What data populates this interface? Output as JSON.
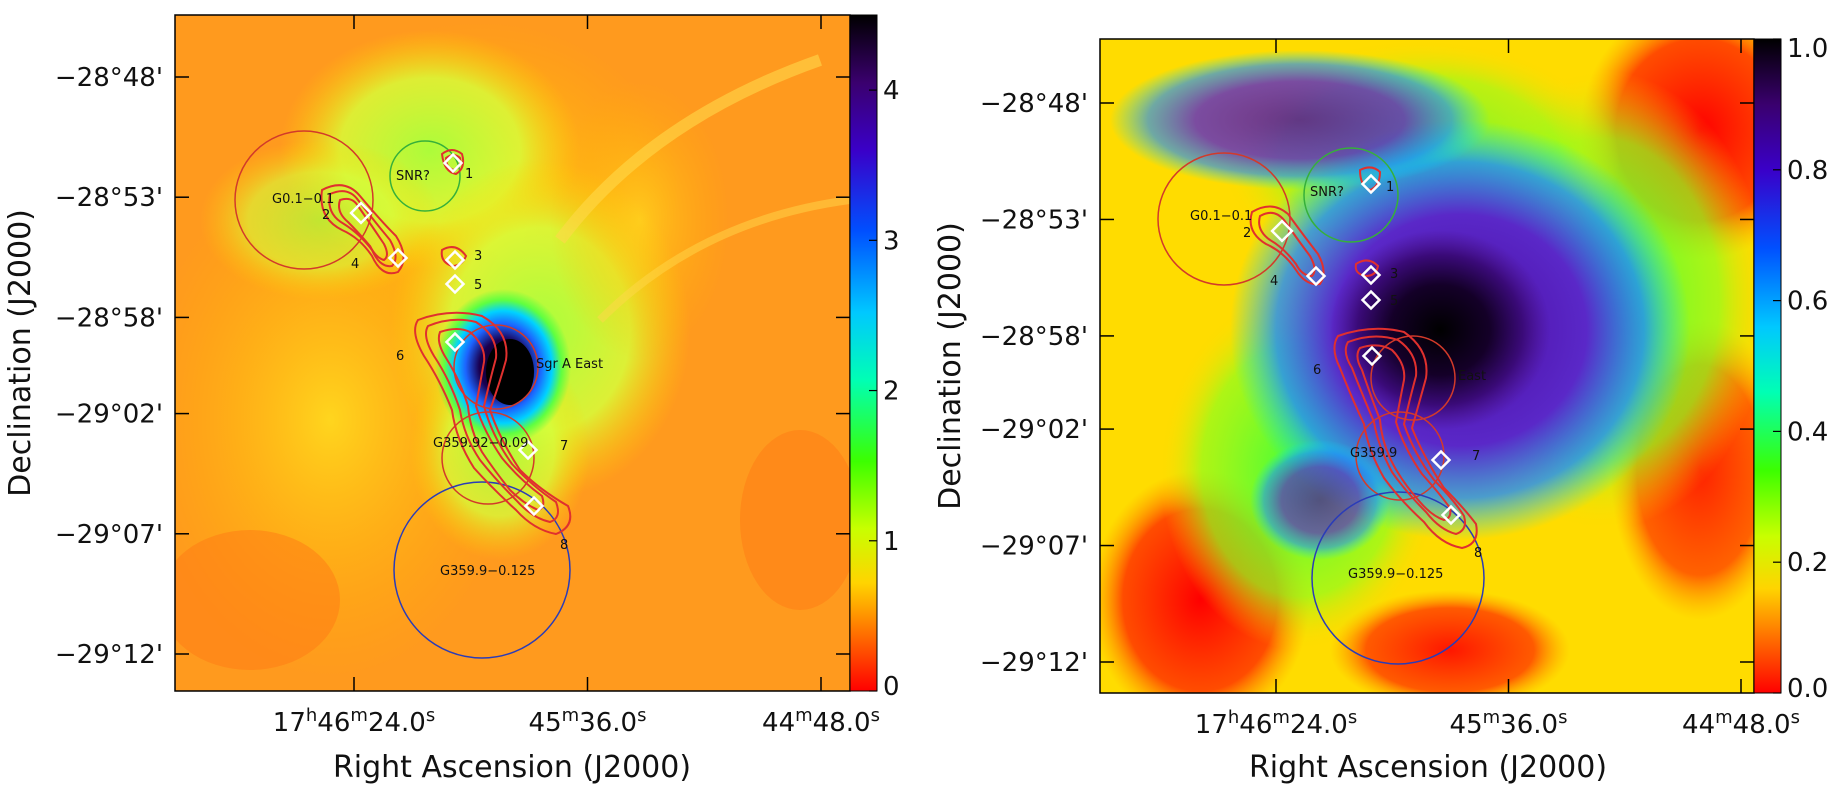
{
  "chart_data": [
    {
      "type": "heatmap",
      "panel": "left",
      "xlabel": "Right Ascension (J2000)",
      "ylabel": "Declination (J2000)",
      "xticks": [
        {
          "ra_sec": 24.0,
          "label_main": "17",
          "label_sup1": "h",
          "label_mid": "46",
          "label_sup2": "m",
          "label_end": "24.0",
          "label_sup3": "s"
        },
        {
          "ra_sec": -24.0,
          "label_main": "45",
          "label_sup1": "m",
          "label_mid": "36.0",
          "label_sup2": "s"
        },
        {
          "ra_sec": -72.0,
          "label_main": "44",
          "label_sup1": "m",
          "label_mid": "48.0",
          "label_sup2": "s"
        }
      ],
      "yticks": [
        {
          "dec_arcmin": -48,
          "label": "−28°48'"
        },
        {
          "dec_arcmin": -53,
          "label": "−28°53'"
        },
        {
          "dec_arcmin": -58,
          "label": "−28°58'"
        },
        {
          "dec_arcmin": -62,
          "label": "−29°02'"
        },
        {
          "dec_arcmin": -67,
          "label": "−29°07'"
        },
        {
          "dec_arcmin": -72,
          "label": "−29°12'"
        }
      ],
      "colorbar": {
        "range": [
          0,
          4.5
        ],
        "ticks": [
          "0",
          "1",
          "2",
          "3",
          "4"
        ],
        "palette": "rainbow_reversed"
      },
      "circles": [
        {
          "label": "G0.1−0.1",
          "color": "#d23a2a"
        },
        {
          "label": "SNR?",
          "color": "#36b03a"
        },
        {
          "label": "Sgr A East",
          "color": "#d23a2a"
        },
        {
          "label": "G359.92−0.09",
          "color": "#d23a2a"
        },
        {
          "label": "G359.9−0.125",
          "color": "#2a3cb8"
        }
      ],
      "sources": [
        "1",
        "2",
        "3",
        "4",
        "5",
        "6",
        "7",
        "8"
      ]
    },
    {
      "type": "heatmap",
      "panel": "right",
      "xlabel": "Right Ascension (J2000)",
      "ylabel": "Declination (J2000)",
      "xticks": [
        {
          "ra_sec": 24.0,
          "label_main": "17",
          "label_sup1": "h",
          "label_mid": "46",
          "label_sup2": "m",
          "label_end": "24.0",
          "label_sup3": "s"
        },
        {
          "ra_sec": -24.0,
          "label_main": "45",
          "label_sup1": "m",
          "label_mid": "36.0",
          "label_sup2": "s"
        },
        {
          "ra_sec": -72.0,
          "label_main": "44",
          "label_sup1": "m",
          "label_mid": "48.0",
          "label_sup2": "s"
        }
      ],
      "yticks": [
        {
          "dec_arcmin": -48,
          "label": "−28°48'"
        },
        {
          "dec_arcmin": -53,
          "label": "−28°53'"
        },
        {
          "dec_arcmin": -58,
          "label": "−28°58'"
        },
        {
          "dec_arcmin": -62,
          "label": "−29°02'"
        },
        {
          "dec_arcmin": -67,
          "label": "−29°07'"
        },
        {
          "dec_arcmin": -72,
          "label": "−29°12'"
        }
      ],
      "colorbar": {
        "range": [
          0,
          1.0
        ],
        "ticks": [
          "0.0",
          "0.2",
          "0.4",
          "0.6",
          "0.8",
          "1.0"
        ],
        "palette": "rainbow_reversed"
      },
      "circles": [
        {
          "label": "G0.1−0.1",
          "color": "#d23a2a"
        },
        {
          "label": "SNR?",
          "color": "#36b03a"
        },
        {
          "label": "East",
          "color": "#d23a2a"
        },
        {
          "label": "G359.9",
          "color": "#d23a2a"
        },
        {
          "label": "G359.9−0.125",
          "color": "#2a3cb8"
        }
      ],
      "sources": [
        "1",
        "2",
        "3",
        "4",
        "5",
        "6",
        "7",
        "8"
      ]
    }
  ]
}
